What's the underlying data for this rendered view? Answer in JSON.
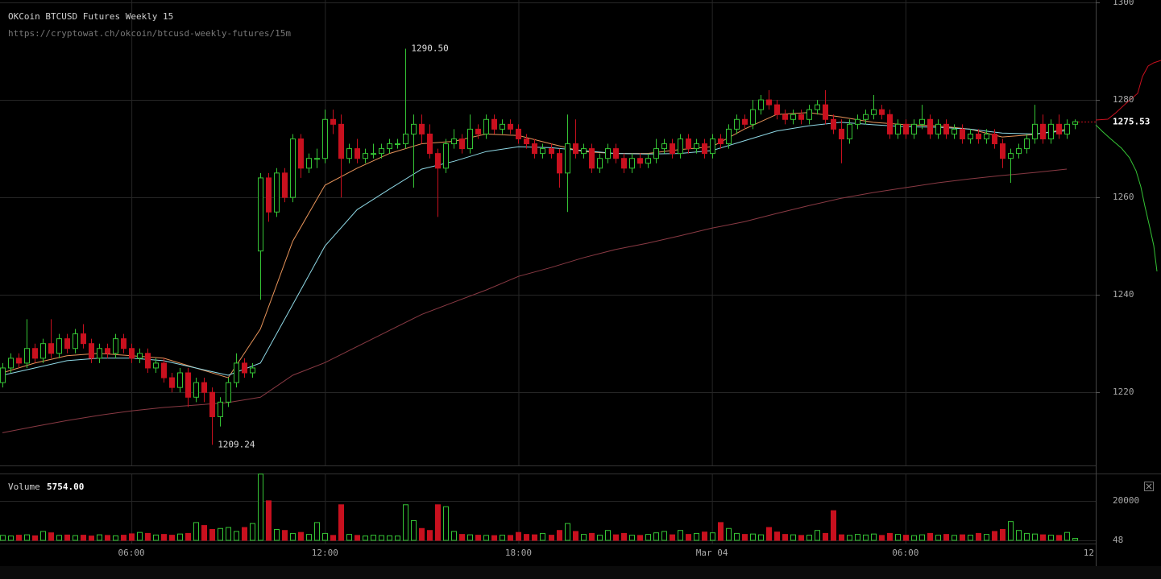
{
  "header": {
    "title": "OKCoin BTCUSD Futures Weekly 15",
    "url": "https://cryptowat.ch/okcoin/btcusd-weekly-futures/15m"
  },
  "chart_data": [
    {
      "type": "candlestick",
      "up_color": "#35c435",
      "down_color": "#c8101e",
      "xlim": [
        1.925,
        35.9
      ],
      "xticks": [
        {
          "value": 6,
          "label": "06:00"
        },
        {
          "value": 12,
          "label": "12:00"
        },
        {
          "value": 18,
          "label": "18:00"
        },
        {
          "value": 24,
          "label": "Mar 04"
        },
        {
          "value": 30,
          "label": "06:00"
        },
        {
          "value": 36,
          "label": "12"
        }
      ],
      "ylim": [
        1205,
        1300.5
      ],
      "yticks": [
        1300,
        1280,
        1260,
        1240,
        1220
      ],
      "grid": true,
      "high_label": "1290.50",
      "low_label": "1209.24",
      "x": [
        2,
        2.25,
        2.5,
        2.75,
        3,
        3.25,
        3.5,
        3.75,
        4,
        4.25,
        4.5,
        4.75,
        5,
        5.25,
        5.5,
        5.75,
        6,
        6.25,
        6.5,
        6.75,
        7,
        7.25,
        7.5,
        7.75,
        8,
        8.25,
        8.5,
        8.75,
        9,
        9.25,
        9.5,
        9.75,
        10,
        10.25,
        10.5,
        10.75,
        11,
        11.25,
        11.5,
        11.75,
        12,
        12.25,
        12.5,
        12.75,
        13,
        13.25,
        13.5,
        13.75,
        14,
        14.25,
        14.5,
        14.75,
        15,
        15.25,
        15.5,
        15.75,
        16,
        16.25,
        16.5,
        16.75,
        17,
        17.25,
        17.5,
        17.75,
        18,
        18.25,
        18.5,
        18.75,
        19,
        19.25,
        19.5,
        19.75,
        20,
        20.25,
        20.5,
        20.75,
        21,
        21.25,
        21.5,
        21.75,
        22,
        22.25,
        22.5,
        22.75,
        23,
        23.25,
        23.5,
        23.75,
        24,
        24.25,
        24.5,
        24.75,
        25,
        25.25,
        25.5,
        25.75,
        26,
        26.25,
        26.5,
        26.75,
        27,
        27.25,
        27.5,
        27.75,
        28,
        28.25,
        28.5,
        28.75,
        29,
        29.25,
        29.5,
        29.75,
        30,
        30.25,
        30.5,
        30.75,
        31,
        31.25,
        31.5,
        31.75,
        32,
        32.25,
        32.5,
        32.75,
        33,
        33.25,
        33.5,
        33.75,
        34,
        34.25,
        34.5,
        34.75,
        35,
        35.25
      ],
      "ohlc": [
        [
          1222,
          1226,
          1221,
          1225
        ],
        [
          1225,
          1228,
          1224,
          1227
        ],
        [
          1227,
          1228,
          1225,
          1226
        ],
        [
          1226,
          1235,
          1225,
          1229
        ],
        [
          1229,
          1230,
          1226,
          1227
        ],
        [
          1227,
          1231,
          1226,
          1230
        ],
        [
          1230,
          1235,
          1227,
          1228
        ],
        [
          1228,
          1232,
          1227,
          1231
        ],
        [
          1231,
          1232,
          1228,
          1229
        ],
        [
          1229,
          1233,
          1228,
          1232
        ],
        [
          1232,
          1234,
          1229,
          1230
        ],
        [
          1230,
          1231,
          1226,
          1227
        ],
        [
          1227,
          1230,
          1226,
          1229
        ],
        [
          1229,
          1230,
          1227,
          1228
        ],
        [
          1228,
          1232,
          1227,
          1231
        ],
        [
          1231,
          1232,
          1228,
          1229
        ],
        [
          1229,
          1230,
          1226,
          1227
        ],
        [
          1227,
          1229,
          1226,
          1228
        ],
        [
          1228,
          1229,
          1224,
          1225
        ],
        [
          1225,
          1227,
          1224,
          1226
        ],
        [
          1226,
          1227,
          1222,
          1223
        ],
        [
          1223,
          1224,
          1220,
          1221
        ],
        [
          1221,
          1225,
          1220,
          1224
        ],
        [
          1224,
          1225,
          1217,
          1219
        ],
        [
          1219,
          1223,
          1218,
          1222
        ],
        [
          1222,
          1223,
          1218,
          1220
        ],
        [
          1220,
          1221,
          1209.24,
          1215
        ],
        [
          1215,
          1219,
          1213,
          1218
        ],
        [
          1218,
          1223,
          1217,
          1222
        ],
        [
          1222,
          1228,
          1221,
          1226
        ],
        [
          1226,
          1227,
          1223,
          1224
        ],
        [
          1224,
          1226,
          1223,
          1225
        ],
        [
          1249,
          1265,
          1239,
          1264
        ],
        [
          1264,
          1265,
          1255,
          1257
        ],
        [
          1257,
          1266,
          1256,
          1265
        ],
        [
          1265,
          1266,
          1259,
          1260
        ],
        [
          1260,
          1273,
          1259,
          1272
        ],
        [
          1272,
          1273,
          1264,
          1266
        ],
        [
          1266,
          1269,
          1265,
          1268
        ],
        [
          1268,
          1270,
          1266,
          1268
        ],
        [
          1268,
          1278,
          1267,
          1276
        ],
        [
          1276,
          1278,
          1273,
          1275
        ],
        [
          1275,
          1277,
          1260,
          1268
        ],
        [
          1268,
          1271,
          1267,
          1270
        ],
        [
          1270,
          1272,
          1267,
          1268
        ],
        [
          1268,
          1270,
          1267,
          1269
        ],
        [
          1269,
          1271,
          1268,
          1269
        ],
        [
          1269,
          1271,
          1268,
          1270
        ],
        [
          1270,
          1272,
          1269,
          1271
        ],
        [
          1271,
          1272,
          1270,
          1271
        ],
        [
          1271,
          1290.5,
          1270,
          1273
        ],
        [
          1273,
          1277,
          1262,
          1275
        ],
        [
          1275,
          1277,
          1271,
          1273
        ],
        [
          1273,
          1275,
          1268,
          1269
        ],
        [
          1269,
          1270,
          1256,
          1266
        ],
        [
          1266,
          1272,
          1265,
          1271
        ],
        [
          1271,
          1274,
          1270,
          1272
        ],
        [
          1272,
          1273,
          1269,
          1270
        ],
        [
          1270,
          1277,
          1269,
          1274
        ],
        [
          1274,
          1275,
          1272,
          1273
        ],
        [
          1273,
          1277,
          1272,
          1276
        ],
        [
          1276,
          1277,
          1273,
          1274
        ],
        [
          1274,
          1276,
          1273,
          1275
        ],
        [
          1275,
          1276,
          1273,
          1274
        ],
        [
          1274,
          1275,
          1271,
          1272
        ],
        [
          1272,
          1273,
          1270,
          1271
        ],
        [
          1271,
          1272,
          1268,
          1269
        ],
        [
          1269,
          1271,
          1268,
          1270
        ],
        [
          1270,
          1271,
          1268,
          1269
        ],
        [
          1269,
          1270,
          1262,
          1265
        ],
        [
          1265,
          1277,
          1257,
          1271
        ],
        [
          1271,
          1276,
          1268,
          1269
        ],
        [
          1269,
          1271,
          1268,
          1270
        ],
        [
          1270,
          1271,
          1265,
          1266
        ],
        [
          1266,
          1269,
          1265,
          1268
        ],
        [
          1268,
          1271,
          1267,
          1270
        ],
        [
          1270,
          1271,
          1267,
          1268
        ],
        [
          1268,
          1269,
          1265,
          1266
        ],
        [
          1266,
          1269,
          1265,
          1268
        ],
        [
          1268,
          1269,
          1266,
          1267
        ],
        [
          1267,
          1269,
          1266,
          1268
        ],
        [
          1268,
          1272,
          1267,
          1270
        ],
        [
          1270,
          1272,
          1269,
          1271
        ],
        [
          1271,
          1272,
          1268,
          1269
        ],
        [
          1269,
          1273,
          1268,
          1272
        ],
        [
          1272,
          1273,
          1269,
          1270
        ],
        [
          1270,
          1272,
          1269,
          1271
        ],
        [
          1271,
          1272,
          1268,
          1269
        ],
        [
          1269,
          1273,
          1268,
          1272
        ],
        [
          1272,
          1273,
          1270,
          1271
        ],
        [
          1271,
          1275,
          1270,
          1274
        ],
        [
          1274,
          1277,
          1273,
          1276
        ],
        [
          1276,
          1277,
          1274,
          1275
        ],
        [
          1275,
          1280,
          1274,
          1278
        ],
        [
          1278,
          1281,
          1277,
          1280
        ],
        [
          1280,
          1282,
          1278,
          1279
        ],
        [
          1279,
          1280,
          1276,
          1277
        ],
        [
          1277,
          1278,
          1275,
          1276
        ],
        [
          1276,
          1278,
          1275,
          1277
        ],
        [
          1277,
          1278,
          1275,
          1276
        ],
        [
          1276,
          1279,
          1275,
          1278
        ],
        [
          1278,
          1280,
          1277,
          1279
        ],
        [
          1279,
          1282,
          1275,
          1276
        ],
        [
          1276,
          1277,
          1273,
          1274
        ],
        [
          1274,
          1276,
          1267,
          1272
        ],
        [
          1272,
          1276,
          1271,
          1275
        ],
        [
          1275,
          1277,
          1274,
          1276
        ],
        [
          1276,
          1278,
          1275,
          1277
        ],
        [
          1277,
          1281,
          1276,
          1278
        ],
        [
          1278,
          1279,
          1276,
          1277
        ],
        [
          1277,
          1278,
          1272,
          1273
        ],
        [
          1273,
          1276,
          1272,
          1275
        ],
        [
          1275,
          1276,
          1272,
          1273
        ],
        [
          1273,
          1276,
          1272,
          1275
        ],
        [
          1275,
          1279,
          1274,
          1276
        ],
        [
          1276,
          1277,
          1272,
          1273
        ],
        [
          1273,
          1276,
          1272,
          1275
        ],
        [
          1275,
          1276,
          1272,
          1273
        ],
        [
          1273,
          1275,
          1272,
          1274
        ],
        [
          1274,
          1275,
          1271,
          1272
        ],
        [
          1272,
          1274,
          1271,
          1273
        ],
        [
          1273,
          1274,
          1271,
          1272
        ],
        [
          1272,
          1274,
          1271,
          1273
        ],
        [
          1273,
          1274,
          1270,
          1271
        ],
        [
          1271,
          1272,
          1266,
          1268
        ],
        [
          1268,
          1270,
          1263,
          1269
        ],
        [
          1269,
          1271,
          1268,
          1270
        ],
        [
          1270,
          1273,
          1269,
          1272
        ],
        [
          1272,
          1279,
          1271,
          1275
        ],
        [
          1275,
          1277,
          1271,
          1272
        ],
        [
          1272,
          1276,
          1271,
          1275
        ],
        [
          1275,
          1277,
          1272,
          1273
        ],
        [
          1273,
          1276,
          1272,
          1275
        ],
        [
          1275,
          1276,
          1274,
          1275.53
        ]
      ],
      "line_x": [
        2,
        3,
        4,
        5,
        6,
        7,
        8,
        9,
        10,
        11,
        12,
        13,
        14,
        15,
        16,
        17,
        18,
        19,
        20,
        21,
        22,
        23,
        24,
        25,
        26,
        27,
        28,
        29,
        30,
        31,
        32,
        33,
        34,
        35
      ],
      "lines": [
        {
          "color": "#e8945a",
          "values": [
            1224,
            1226,
            1227.5,
            1228,
            1227.5,
            1227,
            1225,
            1223,
            1233,
            1251,
            1262.5,
            1266,
            1269,
            1271,
            1271.5,
            1273,
            1272.7,
            1271,
            1269.4,
            1269,
            1269,
            1269.8,
            1270.4,
            1274,
            1277,
            1277.4,
            1276.5,
            1275.4,
            1274.9,
            1274.7,
            1274,
            1272.4,
            1272.9,
            1274
          ]
        },
        {
          "color": "#8fd9e6",
          "values": [
            1223.5,
            1225,
            1226.5,
            1227,
            1227,
            1226.5,
            1225,
            1223.5,
            1226,
            1238,
            1250,
            1257.5,
            1261.7,
            1265.8,
            1267.4,
            1269.4,
            1270.4,
            1270.2,
            1269.6,
            1269,
            1268.9,
            1269,
            1269.6,
            1271.6,
            1273.6,
            1274.7,
            1275.4,
            1274.9,
            1274.5,
            1274.4,
            1274,
            1273.2,
            1273,
            1273.7
          ]
        },
        {
          "color": "#8a3a44",
          "values": [
            1211.7,
            1213,
            1214.2,
            1215.3,
            1216.2,
            1216.9,
            1217.4,
            1217.9,
            1219,
            1223.5,
            1226.1,
            1229.4,
            1232.7,
            1236,
            1238.5,
            1241,
            1243.8,
            1245.6,
            1247.6,
            1249.3,
            1250.6,
            1252.1,
            1253.7,
            1255,
            1256.7,
            1258.3,
            1259.8,
            1261,
            1262,
            1263,
            1263.8,
            1264.5,
            1265.1,
            1265.8
          ]
        }
      ]
    },
    {
      "type": "bar",
      "title": "Volume",
      "subtitle": "5754.00",
      "ylim": [
        0,
        33800
      ],
      "yticks": [
        20000,
        48
      ],
      "grid": true,
      "values": [
        2500,
        2200,
        2600,
        2800,
        2300,
        4500,
        3800,
        2500,
        2700,
        2400,
        2600,
        2200,
        2800,
        2500,
        2300,
        2600,
        3300,
        4000,
        3500,
        2700,
        3000,
        2600,
        3200,
        3500,
        9000,
        7500,
        5500,
        6000,
        6500,
        4500,
        6500,
        8500,
        33500,
        20000,
        5500,
        5000,
        3500,
        4000,
        3000,
        9000,
        3500,
        2500,
        18000,
        3000,
        2500,
        2200,
        2600,
        2400,
        2300,
        2200,
        18000,
        10000,
        6000,
        5000,
        18000,
        17000,
        4500,
        3000,
        2800,
        2600,
        2500,
        2400,
        2600,
        2500,
        4000,
        3000,
        2800,
        3500,
        2600,
        5000,
        8500,
        4500,
        3000,
        3500,
        2600,
        5000,
        2800,
        3500,
        2600,
        2500,
        3000,
        3800,
        4500,
        2800,
        5000,
        3000,
        3500,
        4200,
        3800,
        9000,
        6000,
        3500,
        3000,
        3200,
        2800,
        6500,
        4200,
        3000,
        2800,
        2500,
        2600,
        5000,
        3500,
        15000,
        2800,
        2500,
        3000,
        2700,
        3200,
        2500,
        3500,
        3000,
        2600,
        2400,
        2800,
        3500,
        2600,
        3000,
        2500,
        2800,
        2600,
        3500,
        3000,
        4500,
        5500,
        9500,
        5000,
        3500,
        3200,
        2800,
        2600,
        2500,
        4000,
        1000
      ]
    }
  ]
}
